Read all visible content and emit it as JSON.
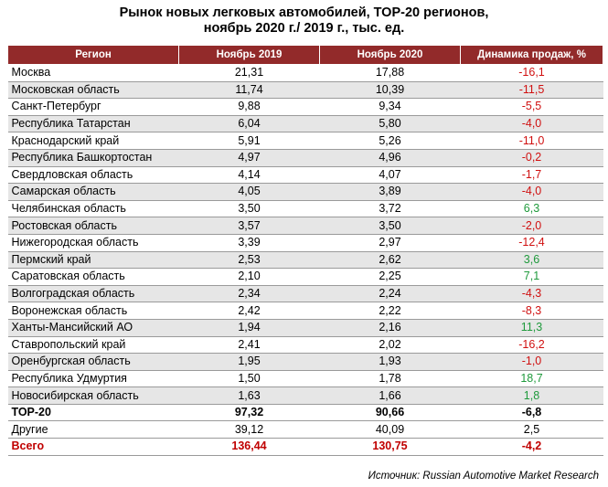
{
  "title": {
    "line1": "Рынок новых легковых автомобилей, ТОР-20 регионов,",
    "line2": "ноябрь 2020 г./ 2019 г., тыс. ед."
  },
  "table": {
    "headers": [
      "Регион",
      "Ноябрь 2019",
      "Ноябрь 2020",
      "Динамика продаж, %"
    ],
    "rows": [
      {
        "region": "Москва",
        "nov2019": "21,31",
        "nov2020": "17,88",
        "dyn": "-16,1",
        "trend": "neg"
      },
      {
        "region": "Московская область",
        "nov2019": "11,74",
        "nov2020": "10,39",
        "dyn": "-11,5",
        "trend": "neg"
      },
      {
        "region": "Санкт-Петербург",
        "nov2019": "9,88",
        "nov2020": "9,34",
        "dyn": "-5,5",
        "trend": "neg"
      },
      {
        "region": "Республика Татарстан",
        "nov2019": "6,04",
        "nov2020": "5,80",
        "dyn": "-4,0",
        "trend": "neg"
      },
      {
        "region": "Краснодарский край",
        "nov2019": "5,91",
        "nov2020": "5,26",
        "dyn": "-11,0",
        "trend": "neg"
      },
      {
        "region": "Республика Башкортостан",
        "nov2019": "4,97",
        "nov2020": "4,96",
        "dyn": "-0,2",
        "trend": "neg"
      },
      {
        "region": "Свердловская область",
        "nov2019": "4,14",
        "nov2020": "4,07",
        "dyn": "-1,7",
        "trend": "neg"
      },
      {
        "region": "Самарская область",
        "nov2019": "4,05",
        "nov2020": "3,89",
        "dyn": "-4,0",
        "trend": "neg"
      },
      {
        "region": "Челябинская область",
        "nov2019": "3,50",
        "nov2020": "3,72",
        "dyn": "6,3",
        "trend": "pos"
      },
      {
        "region": "Ростовская область",
        "nov2019": "3,57",
        "nov2020": "3,50",
        "dyn": "-2,0",
        "trend": "neg"
      },
      {
        "region": "Нижегородская область",
        "nov2019": "3,39",
        "nov2020": "2,97",
        "dyn": "-12,4",
        "trend": "neg"
      },
      {
        "region": "Пермский край",
        "nov2019": "2,53",
        "nov2020": "2,62",
        "dyn": "3,6",
        "trend": "pos"
      },
      {
        "region": "Саратовская область",
        "nov2019": "2,10",
        "nov2020": "2,25",
        "dyn": "7,1",
        "trend": "pos"
      },
      {
        "region": "Волгоградская область",
        "nov2019": "2,34",
        "nov2020": "2,24",
        "dyn": "-4,3",
        "trend": "neg"
      },
      {
        "region": "Воронежская область",
        "nov2019": "2,42",
        "nov2020": "2,22",
        "dyn": "-8,3",
        "trend": "neg"
      },
      {
        "region": "Ханты-Мансийский АО",
        "nov2019": "1,94",
        "nov2020": "2,16",
        "dyn": "11,3",
        "trend": "pos"
      },
      {
        "region": "Ставропольский край",
        "nov2019": "2,41",
        "nov2020": "2,02",
        "dyn": "-16,2",
        "trend": "neg"
      },
      {
        "region": "Оренбургская область",
        "nov2019": "1,95",
        "nov2020": "1,93",
        "dyn": "-1,0",
        "trend": "neg"
      },
      {
        "region": "Республика Удмуртия",
        "nov2019": "1,50",
        "nov2020": "1,78",
        "dyn": "18,7",
        "trend": "pos"
      },
      {
        "region": "Новосибирская область",
        "nov2019": "1,63",
        "nov2020": "1,66",
        "dyn": "1,8",
        "trend": "pos"
      }
    ],
    "top20": {
      "region": "ТОР-20",
      "nov2019": "97,32",
      "nov2020": "90,66",
      "dyn": "-6,8"
    },
    "other": {
      "region": "Другие",
      "nov2019": "39,12",
      "nov2020": "40,09",
      "dyn": "2,5"
    },
    "total": {
      "region": "Всего",
      "nov2019": "136,44",
      "nov2020": "130,75",
      "dyn": "-4,2"
    }
  },
  "colors": {
    "header_bg": "#922a2a",
    "negative": "#d01010",
    "positive": "#1f9a3c",
    "total_text": "#c00000",
    "row_shade": "#e6e6e6"
  },
  "source": "Источник: Russian Automotive Market Research"
}
